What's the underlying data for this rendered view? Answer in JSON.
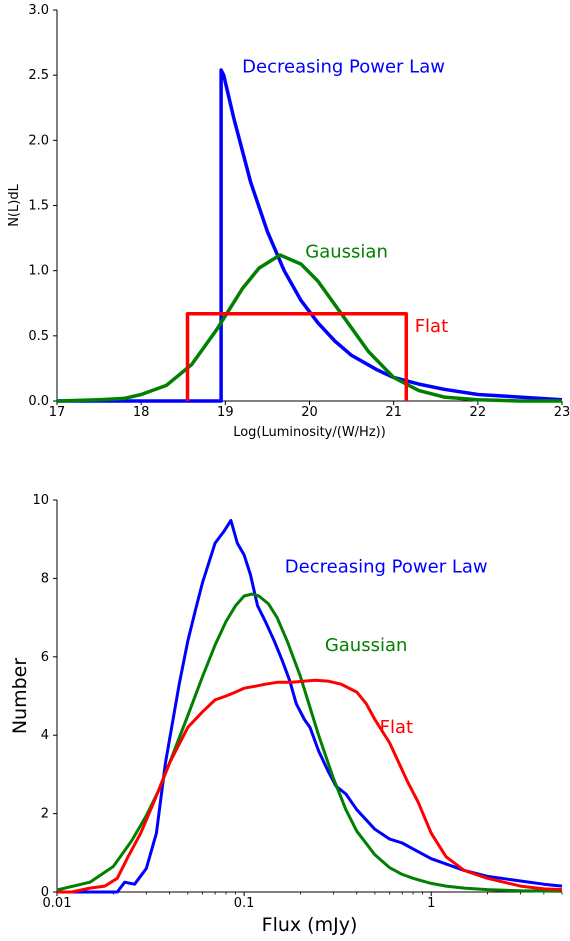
{
  "chart_data": [
    {
      "type": "line",
      "title": "",
      "xlabel": "Log(Luminosity/(W/Hz))",
      "ylabel": "N(L)dL",
      "xlim": [
        17,
        23
      ],
      "ylim": [
        0,
        3.0
      ],
      "xticks": [
        "17",
        "18",
        "19",
        "20",
        "21",
        "22",
        "23"
      ],
      "yticks": [
        "0.0",
        "0.5",
        "1.0",
        "1.5",
        "2.0",
        "2.5",
        "3.0"
      ],
      "grid": false,
      "series": [
        {
          "name": "Decreasing Power Law",
          "color": "#0000ff",
          "x": [
            17.0,
            18.0,
            18.95,
            18.95,
            18.98,
            19.1,
            19.3,
            19.5,
            19.7,
            19.9,
            20.1,
            20.3,
            20.5,
            20.8,
            21.0,
            21.3,
            21.6,
            22.0,
            22.5,
            23.0
          ],
          "y": [
            0.0,
            0.0,
            0.0,
            2.54,
            2.5,
            2.17,
            1.68,
            1.3,
            1.0,
            0.77,
            0.6,
            0.46,
            0.35,
            0.24,
            0.18,
            0.13,
            0.09,
            0.05,
            0.03,
            0.01
          ]
        },
        {
          "name": "Gaussian",
          "color": "#008000",
          "x": [
            17.0,
            17.5,
            17.8,
            18.0,
            18.3,
            18.6,
            18.9,
            19.2,
            19.4,
            19.65,
            19.9,
            20.1,
            20.4,
            20.7,
            21.0,
            21.3,
            21.6,
            22.0,
            22.5,
            23.0
          ],
          "y": [
            0.0,
            0.01,
            0.02,
            0.05,
            0.12,
            0.28,
            0.55,
            0.86,
            1.02,
            1.12,
            1.05,
            0.92,
            0.65,
            0.38,
            0.18,
            0.08,
            0.03,
            0.01,
            0.0,
            0.0
          ]
        },
        {
          "name": "Flat",
          "color": "#ff0000",
          "x": [
            18.55,
            18.55,
            21.15,
            21.15
          ],
          "y": [
            0.0,
            0.67,
            0.67,
            0.0
          ]
        }
      ],
      "annotations": [
        {
          "text": "Decreasing Power Law",
          "color": "#0000ff",
          "x": 19.2,
          "y": 2.52
        },
        {
          "text": "Gaussian",
          "color": "#008000",
          "x": 19.95,
          "y": 1.1
        },
        {
          "text": "Flat",
          "color": "#ff0000",
          "x": 21.25,
          "y": 0.53
        }
      ]
    },
    {
      "type": "line",
      "title": "",
      "xlabel": "Flux (mJy)",
      "ylabel": "Number",
      "xscale": "log",
      "xlim": [
        0.01,
        5
      ],
      "ylim": [
        0,
        10
      ],
      "xticks": [
        "0.01",
        "0.1",
        "1"
      ],
      "yticks": [
        "0",
        "2",
        "4",
        "6",
        "8",
        "10"
      ],
      "grid": false,
      "series": [
        {
          "name": "Decreasing Power Law",
          "color": "#0000ff",
          "x": [
            0.01,
            0.021,
            0.023,
            0.026,
            0.03,
            0.034,
            0.038,
            0.045,
            0.05,
            0.055,
            0.06,
            0.07,
            0.078,
            0.085,
            0.092,
            0.1,
            0.108,
            0.118,
            0.13,
            0.145,
            0.16,
            0.175,
            0.19,
            0.21,
            0.225,
            0.25,
            0.28,
            0.31,
            0.35,
            0.4,
            0.5,
            0.6,
            0.7,
            0.8,
            1.0,
            1.5,
            2.0,
            3.0,
            4.0,
            5.0
          ],
          "y": [
            0.0,
            0.0,
            0.25,
            0.2,
            0.6,
            1.5,
            3.3,
            5.3,
            6.4,
            7.2,
            7.9,
            8.9,
            9.2,
            9.48,
            8.9,
            8.6,
            8.1,
            7.3,
            6.9,
            6.4,
            5.9,
            5.4,
            4.8,
            4.4,
            4.2,
            3.6,
            3.1,
            2.7,
            2.5,
            2.1,
            1.6,
            1.35,
            1.25,
            1.1,
            0.85,
            0.55,
            0.4,
            0.28,
            0.2,
            0.15
          ]
        },
        {
          "name": "Gaussian",
          "color": "#008000",
          "x": [
            0.01,
            0.015,
            0.02,
            0.025,
            0.03,
            0.035,
            0.04,
            0.05,
            0.06,
            0.07,
            0.08,
            0.09,
            0.1,
            0.11,
            0.12,
            0.135,
            0.15,
            0.17,
            0.2,
            0.25,
            0.3,
            0.35,
            0.4,
            0.5,
            0.6,
            0.7,
            0.8,
            1.0,
            1.2,
            1.5,
            2.0,
            3.0,
            5.0
          ],
          "y": [
            0.05,
            0.25,
            0.65,
            1.3,
            1.95,
            2.6,
            3.3,
            4.5,
            5.5,
            6.3,
            6.9,
            7.3,
            7.55,
            7.6,
            7.55,
            7.35,
            7.0,
            6.4,
            5.5,
            4.0,
            2.9,
            2.1,
            1.55,
            0.95,
            0.62,
            0.45,
            0.35,
            0.22,
            0.15,
            0.1,
            0.06,
            0.03,
            0.02
          ]
        },
        {
          "name": "Flat",
          "color": "#ff0000",
          "x": [
            0.01,
            0.012,
            0.015,
            0.018,
            0.021,
            0.024,
            0.028,
            0.033,
            0.04,
            0.05,
            0.06,
            0.07,
            0.08,
            0.09,
            0.1,
            0.115,
            0.13,
            0.15,
            0.18,
            0.21,
            0.24,
            0.28,
            0.33,
            0.4,
            0.45,
            0.5,
            0.6,
            0.75,
            0.85,
            1.0,
            1.2,
            1.5,
            2.0,
            3.0,
            4.0,
            5.0
          ],
          "y": [
            0.0,
            0.0,
            0.1,
            0.15,
            0.35,
            0.9,
            1.5,
            2.3,
            3.3,
            4.2,
            4.6,
            4.9,
            5.0,
            5.1,
            5.2,
            5.25,
            5.3,
            5.35,
            5.35,
            5.38,
            5.4,
            5.38,
            5.3,
            5.1,
            4.8,
            4.4,
            3.8,
            2.8,
            2.3,
            1.5,
            0.9,
            0.55,
            0.35,
            0.15,
            0.08,
            0.06
          ]
        }
      ],
      "annotations": [
        {
          "text": "Decreasing Power Law",
          "color": "#0000ff",
          "x": 0.165,
          "y": 8.15
        },
        {
          "text": "Gaussian",
          "color": "#008000",
          "x": 0.27,
          "y": 6.15
        },
        {
          "text": "Flat",
          "color": "#ff0000",
          "x": 0.53,
          "y": 4.05
        }
      ]
    }
  ]
}
